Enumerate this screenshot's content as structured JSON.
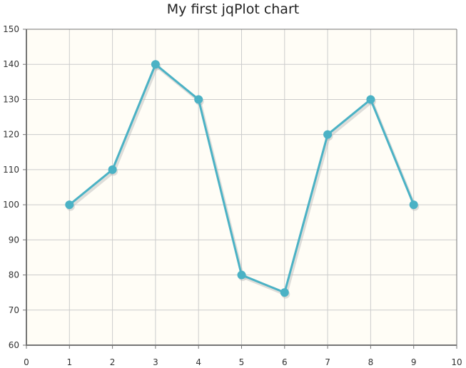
{
  "chart_data": {
    "type": "line",
    "title": "My first jqPlot chart",
    "xlabel": "",
    "ylabel": "",
    "xlim": [
      0,
      10
    ],
    "ylim": [
      60,
      150
    ],
    "x_ticks": [
      "0",
      "1",
      "2",
      "3",
      "4",
      "5",
      "6",
      "7",
      "8",
      "9",
      "10"
    ],
    "y_ticks": [
      "60",
      "70",
      "80",
      "90",
      "100",
      "110",
      "120",
      "130",
      "140",
      "150"
    ],
    "grid": true,
    "legend": "none",
    "series": [
      {
        "x": [
          1,
          2,
          3,
          4,
          5,
          6,
          7,
          8,
          9
        ],
        "values": [
          100,
          110,
          140,
          130,
          80,
          75,
          120,
          130,
          100
        ],
        "color": "#4bb2c5"
      }
    ]
  },
  "colors": {
    "plot_background": "#fffdf6",
    "grid": "#cccccc",
    "axis": "#757575",
    "series": "#4bb2c5",
    "shadow": "#b5b5b5"
  }
}
